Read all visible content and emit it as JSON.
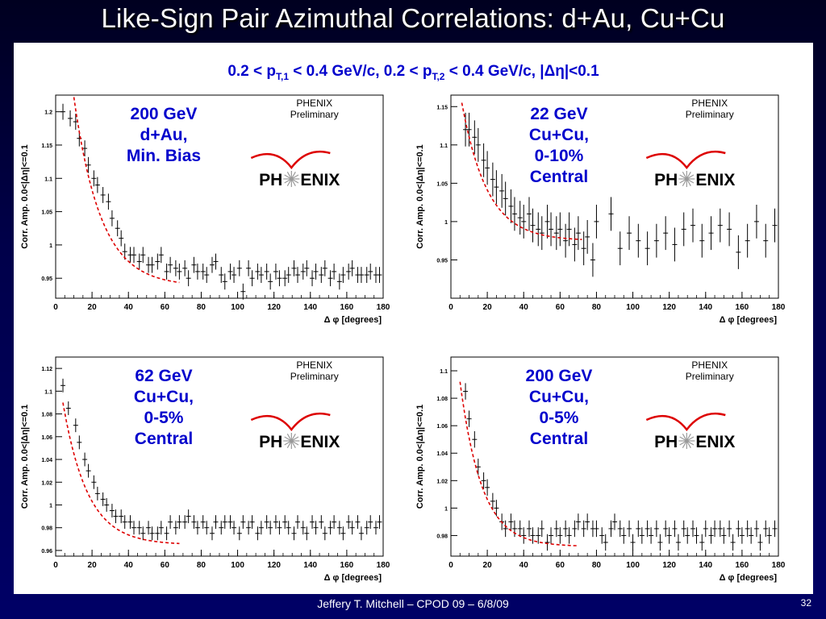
{
  "slide": {
    "title": "Like-Sign Pair Azimuthal Correlations: d+Au, Cu+Cu",
    "subtitle": "0.2 < pT,1 < 0.4 GeV/c, 0.2 < pT,2 < 0.4 GeV/c, |Δη|<0.1",
    "subtitle_parts": {
      "a": "0.2 < p",
      "a_sub": "T,1",
      "b": " < 0.4 GeV/c, 0.2 < p",
      "b_sub": "T,2",
      "c": " < 0.4 GeV/c, |Δη|<0.1"
    },
    "footer": "Jeffery T. Mitchell – CPOD 09 – 6/8/09",
    "page_number": "32",
    "colors": {
      "title": "#ffffff",
      "subtitle": "#0000cc",
      "label": "#0000cc",
      "fit": "#dd0000",
      "logo_arc": "#dd0000"
    }
  },
  "chart_data": [
    {
      "type": "scatter",
      "label_lines": [
        "200 GeV",
        "d+Au,",
        "Min. Bias"
      ],
      "annotation": [
        "PHENIX",
        "Preliminary"
      ],
      "logo": [
        "PH",
        "ENIX"
      ],
      "xlabel": "Δ φ [degrees]",
      "ylabel": "Corr. Amp. 0.0<|Δη|<=0.1",
      "xlim": [
        0,
        180
      ],
      "ylim": [
        0.92,
        1.225
      ],
      "xticks": [
        0,
        20,
        40,
        60,
        80,
        100,
        120,
        140,
        160,
        180
      ],
      "yticks": [
        0.95,
        1,
        1.05,
        1.1,
        1.15,
        1.2
      ],
      "ytick_labels": [
        "0.95",
        "1",
        "1.05",
        "1.1",
        "1.15",
        "1.2"
      ],
      "x": [
        4,
        8,
        11,
        13,
        16,
        18,
        21,
        23,
        26,
        29,
        31,
        34,
        36,
        38,
        41,
        43,
        46,
        48,
        51,
        53,
        56,
        58,
        61,
        63,
        66,
        68,
        71,
        73,
        76,
        78,
        81,
        83,
        86,
        88,
        91,
        93,
        96,
        98,
        101,
        103,
        106,
        108,
        111,
        113,
        116,
        118,
        121,
        123,
        126,
        128,
        131,
        133,
        136,
        138,
        141,
        143,
        146,
        148,
        151,
        153,
        156,
        158,
        161,
        163,
        166,
        168,
        171,
        173,
        176,
        178
      ],
      "y": [
        1.2,
        1.19,
        1.185,
        1.16,
        1.145,
        1.12,
        1.1,
        1.09,
        1.075,
        1.065,
        1.04,
        1.025,
        1.01,
        0.99,
        0.985,
        0.985,
        0.975,
        0.985,
        0.97,
        0.97,
        0.975,
        0.985,
        0.96,
        0.97,
        0.965,
        0.96,
        0.965,
        0.95,
        0.97,
        0.96,
        0.96,
        0.955,
        0.97,
        0.975,
        0.955,
        0.945,
        0.96,
        0.955,
        0.965,
        0.93,
        0.965,
        0.95,
        0.96,
        0.955,
        0.96,
        0.945,
        0.96,
        0.95,
        0.95,
        0.955,
        0.965,
        0.955,
        0.96,
        0.965,
        0.95,
        0.96,
        0.955,
        0.965,
        0.95,
        0.96,
        0.945,
        0.955,
        0.96,
        0.965,
        0.955,
        0.955,
        0.955,
        0.96,
        0.955,
        0.955
      ],
      "yerr": 0.012,
      "fit": {
        "x0": 8,
        "A": 0.325,
        "tau": 14.8,
        "C": 0.938,
        "xmax": 68
      }
    },
    {
      "type": "scatter",
      "label_lines": [
        "22 GeV",
        "Cu+Cu,",
        "0-10%",
        "Central"
      ],
      "annotation": [
        "PHENIX",
        "Preliminary"
      ],
      "logo": [
        "PH",
        "ENIX"
      ],
      "xlabel": "Δ φ [degrees]",
      "ylabel": "Corr. Amp. 0.0<|Δη|<=0.1",
      "xlim": [
        0,
        180
      ],
      "ylim": [
        0.9,
        1.165
      ],
      "xticks": [
        0,
        20,
        40,
        60,
        80,
        100,
        120,
        140,
        160,
        180
      ],
      "yticks": [
        0.95,
        1,
        1.05,
        1.1,
        1.15
      ],
      "ytick_labels": [
        "0.95",
        "1",
        "1.05",
        "1.1",
        "1.15"
      ],
      "x": [
        8,
        10,
        13,
        15,
        18,
        20,
        23,
        25,
        28,
        30,
        33,
        35,
        38,
        40,
        43,
        45,
        48,
        50,
        53,
        55,
        58,
        60,
        63,
        65,
        68,
        70,
        73,
        75,
        78,
        80,
        88,
        93,
        98,
        103,
        108,
        113,
        118,
        123,
        128,
        133,
        138,
        143,
        148,
        153,
        158,
        163,
        168,
        173,
        178
      ],
      "y": [
        1.12,
        1.12,
        1.11,
        1.1,
        1.08,
        1.07,
        1.055,
        1.045,
        1.04,
        1.03,
        1.02,
        1.01,
        1.005,
        1.0,
        1.01,
        0.995,
        0.99,
        0.985,
        1.0,
        0.99,
        0.985,
        0.99,
        0.975,
        0.99,
        0.97,
        0.985,
        0.965,
        0.98,
        0.95,
        1.0,
        1.01,
        0.965,
        0.985,
        0.975,
        0.965,
        0.975,
        0.985,
        0.97,
        0.99,
        0.995,
        0.975,
        0.985,
        0.995,
        0.99,
        0.96,
        0.975,
        1.0,
        0.975,
        0.995
      ],
      "yerr": 0.022,
      "fit": {
        "x0": 6,
        "A": 0.18,
        "tau": 14,
        "C": 0.975,
        "xmax": 72
      }
    },
    {
      "type": "scatter",
      "label_lines": [
        "62 GeV",
        "Cu+Cu,",
        "0-5%",
        "Central"
      ],
      "annotation": [
        "PHENIX",
        "Preliminary"
      ],
      "logo": [
        "PH",
        "ENIX"
      ],
      "xlabel": "Δ φ [degrees]",
      "ylabel": "Corr. Amp. 0.0<|Δη|<=0.1",
      "xlim": [
        0,
        180
      ],
      "ylim": [
        0.955,
        1.13
      ],
      "xticks": [
        0,
        20,
        40,
        60,
        80,
        100,
        120,
        140,
        160,
        180
      ],
      "yticks": [
        0.96,
        0.98,
        1,
        1.02,
        1.04,
        1.06,
        1.08,
        1.1,
        1.12
      ],
      "ytick_labels": [
        "0.96",
        "0.98",
        "1",
        "1.02",
        "1.04",
        "1.06",
        "1.08",
        "1.1",
        "1.12"
      ],
      "x": [
        4,
        7,
        11,
        13,
        16,
        18,
        21,
        23,
        26,
        28,
        31,
        33,
        36,
        38,
        41,
        43,
        46,
        48,
        51,
        53,
        56,
        58,
        61,
        63,
        66,
        68,
        71,
        73,
        76,
        78,
        81,
        83,
        86,
        88,
        91,
        93,
        96,
        98,
        101,
        103,
        106,
        108,
        111,
        113,
        116,
        118,
        121,
        123,
        126,
        128,
        131,
        133,
        136,
        138,
        141,
        143,
        146,
        148,
        151,
        153,
        156,
        158,
        161,
        163,
        166,
        168,
        171,
        173,
        176,
        178
      ],
      "y": [
        1.105,
        1.085,
        1.07,
        1.055,
        1.04,
        1.03,
        1.02,
        1.01,
        1.005,
        1.0,
        0.995,
        0.99,
        0.99,
        0.985,
        0.985,
        0.98,
        0.98,
        0.975,
        0.98,
        0.975,
        0.975,
        0.98,
        0.975,
        0.985,
        0.98,
        0.985,
        0.985,
        0.99,
        0.985,
        0.98,
        0.985,
        0.98,
        0.975,
        0.985,
        0.98,
        0.985,
        0.985,
        0.98,
        0.975,
        0.985,
        0.98,
        0.985,
        0.975,
        0.98,
        0.985,
        0.98,
        0.985,
        0.98,
        0.985,
        0.98,
        0.975,
        0.985,
        0.98,
        0.975,
        0.985,
        0.98,
        0.985,
        0.975,
        0.98,
        0.985,
        0.98,
        0.975,
        0.985,
        0.98,
        0.985,
        0.975,
        0.98,
        0.985,
        0.98,
        0.985
      ],
      "yerr": 0.006,
      "fit": {
        "x0": 4,
        "A": 0.125,
        "tau": 13.5,
        "C": 0.965,
        "xmax": 68
      }
    },
    {
      "type": "scatter",
      "label_lines": [
        "200 GeV",
        "Cu+Cu,",
        "0-5%",
        "Central"
      ],
      "annotation": [
        "PHENIX",
        "Preliminary"
      ],
      "logo": [
        "PH",
        "ENIX"
      ],
      "xlabel": "Δ φ [degrees]",
      "ylabel": "Corr. Amp. 0.0<|Δη|<=0.1",
      "xlim": [
        0,
        180
      ],
      "ylim": [
        0.965,
        1.11
      ],
      "xticks": [
        0,
        20,
        40,
        60,
        80,
        100,
        120,
        140,
        160,
        180
      ],
      "yticks": [
        0.98,
        1,
        1.02,
        1.04,
        1.06,
        1.08,
        1.1
      ],
      "ytick_labels": [
        "0.98",
        "1",
        "1.02",
        "1.04",
        "1.06",
        "1.08",
        "1.1"
      ],
      "x": [
        8,
        10,
        13,
        15,
        18,
        20,
        23,
        25,
        28,
        30,
        33,
        35,
        38,
        40,
        43,
        45,
        48,
        50,
        53,
        55,
        58,
        60,
        63,
        65,
        68,
        70,
        73,
        75,
        78,
        80,
        83,
        85,
        88,
        90,
        93,
        95,
        98,
        100,
        103,
        105,
        108,
        110,
        113,
        115,
        118,
        120,
        123,
        125,
        128,
        130,
        133,
        135,
        138,
        140,
        143,
        145,
        148,
        150,
        153,
        155,
        158,
        160,
        163,
        165,
        168,
        170,
        173,
        175,
        178
      ],
      "y": [
        1.085,
        1.065,
        1.05,
        1.03,
        1.02,
        1.015,
        1.005,
        1.0,
        0.99,
        0.985,
        0.99,
        0.985,
        0.985,
        0.98,
        0.985,
        0.98,
        0.98,
        0.985,
        0.975,
        0.98,
        0.985,
        0.98,
        0.985,
        0.98,
        0.985,
        0.99,
        0.985,
        0.99,
        0.985,
        0.985,
        0.98,
        0.975,
        0.985,
        0.99,
        0.985,
        0.98,
        0.985,
        0.975,
        0.985,
        0.98,
        0.985,
        0.98,
        0.985,
        0.975,
        0.985,
        0.98,
        0.985,
        0.975,
        0.985,
        0.98,
        0.985,
        0.98,
        0.975,
        0.985,
        0.98,
        0.985,
        0.985,
        0.98,
        0.985,
        0.975,
        0.985,
        0.98,
        0.985,
        0.98,
        0.985,
        0.975,
        0.985,
        0.98,
        0.985
      ],
      "yerr": 0.006,
      "fit": {
        "x0": 5,
        "A": 0.12,
        "tau": 12,
        "C": 0.972,
        "xmax": 70
      }
    }
  ]
}
